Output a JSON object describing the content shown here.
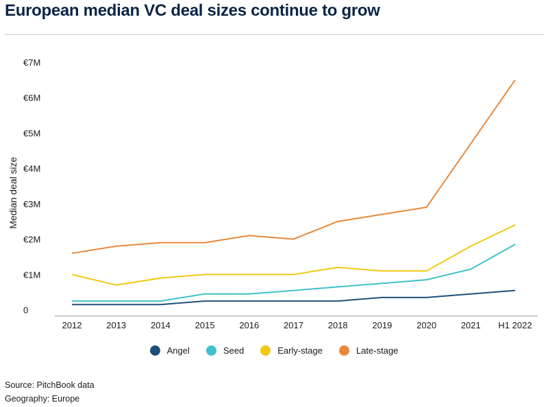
{
  "header": {
    "title": "European median VC deal sizes continue to grow"
  },
  "footer": {
    "source": "Source: PitchBook data",
    "geography": "Geography: Europe"
  },
  "chart_data": {
    "type": "line",
    "title": "European median VC deal sizes continue to grow",
    "xlabel": "",
    "ylabel": "Median deal size",
    "ylim": [
      0,
      7
    ],
    "y_ticks": [
      {
        "value": 0,
        "label": "0"
      },
      {
        "value": 1,
        "label": "€1M"
      },
      {
        "value": 2,
        "label": "€2M"
      },
      {
        "value": 3,
        "label": "€3M"
      },
      {
        "value": 4,
        "label": "€4M"
      },
      {
        "value": 5,
        "label": "€5M"
      },
      {
        "value": 6,
        "label": "€6M"
      },
      {
        "value": 7,
        "label": "€7M"
      }
    ],
    "categories": [
      "2012",
      "2013",
      "2014",
      "2015",
      "2016",
      "2017",
      "2018",
      "2019",
      "2020",
      "2021",
      "H1 2022"
    ],
    "grid": false,
    "legend_position": "bottom",
    "series": [
      {
        "name": "Angel",
        "color": "#1f4e79",
        "values": [
          0.15,
          0.15,
          0.15,
          0.25,
          0.25,
          0.25,
          0.25,
          0.35,
          0.35,
          0.45,
          0.55
        ]
      },
      {
        "name": "Seed",
        "color": "#3fc1c9",
        "values": [
          0.25,
          0.25,
          0.25,
          0.45,
          0.45,
          0.55,
          0.65,
          0.75,
          0.85,
          1.15,
          1.85
        ]
      },
      {
        "name": "Early-stage",
        "color": "#f2c80f",
        "values": [
          1.0,
          0.7,
          0.9,
          1.0,
          1.0,
          1.0,
          1.2,
          1.1,
          1.1,
          1.8,
          2.4
        ]
      },
      {
        "name": "Late-stage",
        "color": "#e8883a",
        "values": [
          1.6,
          1.8,
          1.9,
          1.9,
          2.1,
          2.0,
          2.5,
          2.7,
          2.9,
          4.7,
          6.5
        ]
      }
    ]
  }
}
